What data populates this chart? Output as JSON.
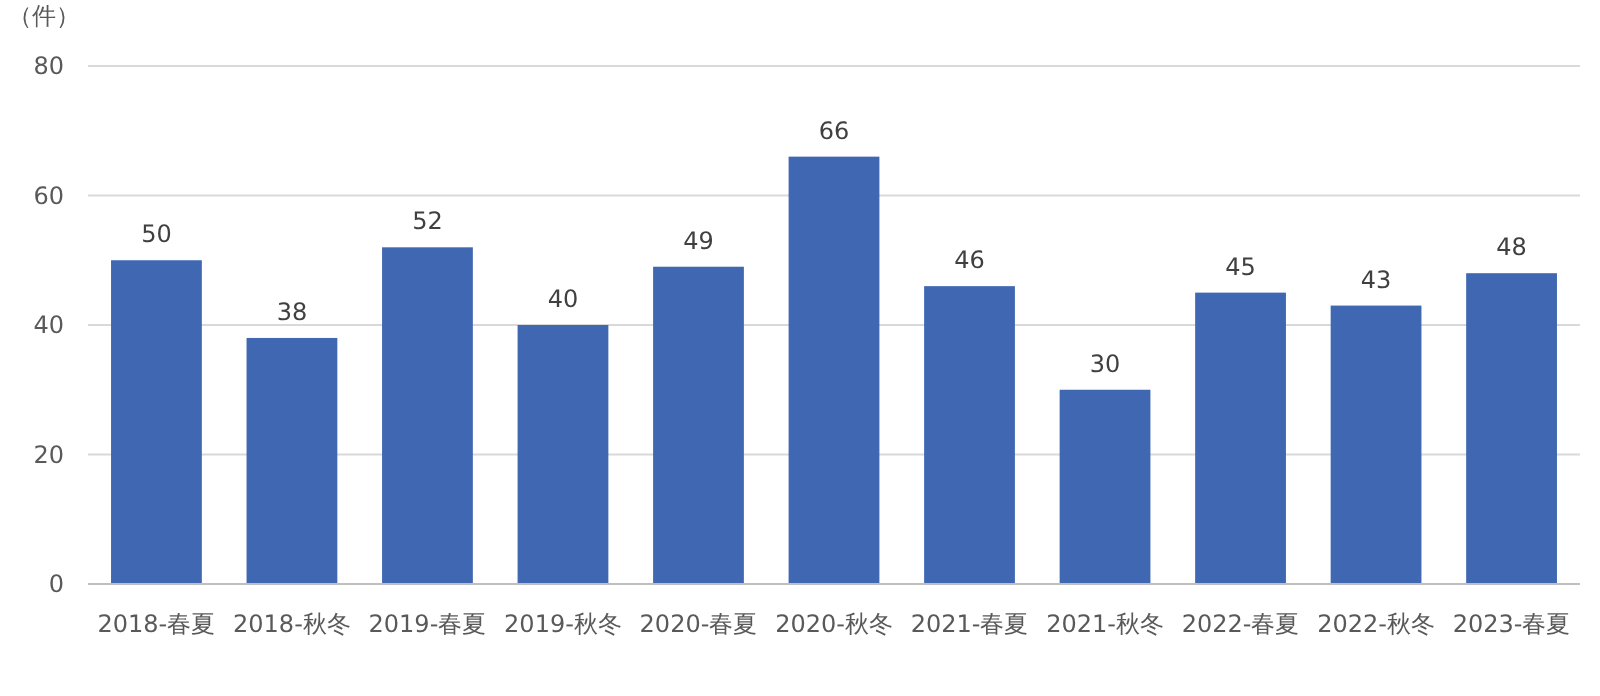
{
  "chart_data": {
    "type": "bar",
    "ylabel": "（件）",
    "categories": [
      "2018-春夏",
      "2018-秋冬",
      "2019-春夏",
      "2019-秋冬",
      "2020-春夏",
      "2020-秋冬",
      "2021-春夏",
      "2021-秋冬",
      "2022-春夏",
      "2022-秋冬",
      "2023-春夏"
    ],
    "values": [
      50,
      38,
      52,
      40,
      49,
      66,
      46,
      30,
      45,
      43,
      48
    ],
    "color": "#4068b2",
    "ylim": [
      0,
      80
    ],
    "yticks": [
      0,
      20,
      40,
      60,
      80
    ],
    "grid": "y",
    "data_labels": true
  }
}
